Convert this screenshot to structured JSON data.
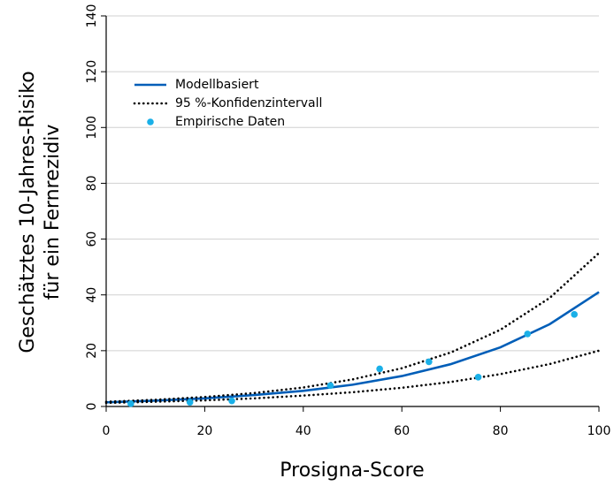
{
  "chart_data": {
    "type": "line",
    "xlabel": "Prosigna-Score",
    "ylabel": [
      "Geschätztes 10-Jahres-Risiko",
      "für ein Fernrezidiv"
    ],
    "xlim": [
      0,
      100
    ],
    "xticks": [
      0,
      20,
      40,
      60,
      80,
      100
    ],
    "ylim": [
      0,
      140
    ],
    "yticks": [
      0,
      20,
      40,
      60,
      80,
      100,
      120,
      140
    ],
    "grid": true,
    "legend": "upper left",
    "series": [
      {
        "name": "Modellbasiert",
        "color": "#005eb8",
        "style": "solid",
        "x": [
          0,
          10,
          20,
          30,
          40,
          50,
          60,
          70,
          80,
          90,
          100
        ],
        "values": [
          1.5,
          2.1,
          2.9,
          4.1,
          5.6,
          7.8,
          10.9,
          15.2,
          21.2,
          29.5,
          41
        ]
      },
      {
        "name": "95 %-Konfidenzintervall",
        "color": "#000000",
        "style": "dotted",
        "x": [
          0,
          10,
          20,
          30,
          40,
          50,
          60,
          70,
          80,
          90,
          100
        ],
        "values": [
          1.7,
          2.4,
          3.4,
          4.8,
          6.8,
          9.7,
          13.7,
          19.4,
          27.5,
          38.9,
          55
        ],
        "lower": [
          1.3,
          1.7,
          2.2,
          2.9,
          3.9,
          5.1,
          6.7,
          8.8,
          11.6,
          15.2,
          20
        ]
      },
      {
        "name": "Empirische Daten",
        "color": "#1ab0e8",
        "style": "markers",
        "x": [
          5,
          17,
          25.5,
          45.5,
          55.5,
          65.5,
          75.5,
          85.5,
          95
        ],
        "values": [
          1,
          1.5,
          2,
          7.5,
          13.5,
          16,
          10.5,
          26,
          33
        ]
      }
    ]
  }
}
